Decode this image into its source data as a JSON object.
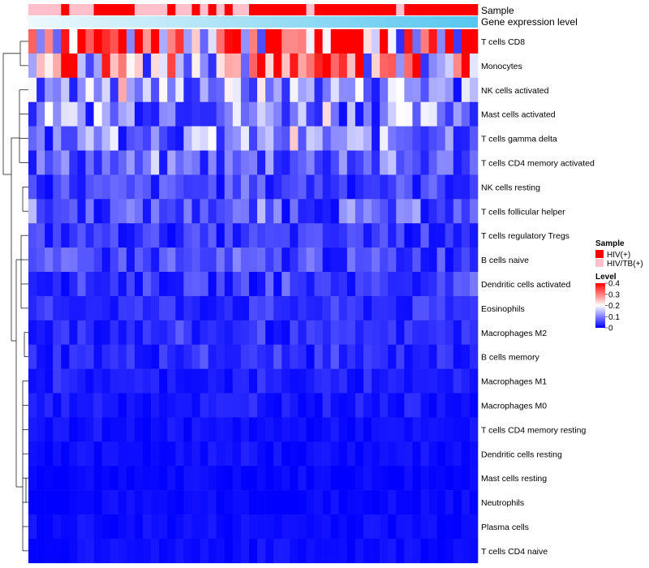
{
  "chart_data": {
    "type": "heatmap",
    "title": "",
    "annotations": {
      "sample_label": "Sample",
      "expression_label": "Gene expression level",
      "sample_groups": [
        "HIV/TB(+)",
        "HIV/TB(+)",
        "HIV/TB(+)",
        "HIV/TB(+)",
        "HIV(+)",
        "HIV/TB(+)",
        "HIV/TB(+)",
        "HIV/TB(+)",
        "HIV(+)",
        "HIV(+)",
        "HIV(+)",
        "HIV(+)",
        "HIV(+)",
        "HIV/TB(+)",
        "HIV/TB(+)",
        "HIV/TB(+)",
        "HIV/TB(+)",
        "HIV(+)",
        "HIV/TB(+)",
        "HIV/TB(+)",
        "HIV(+)",
        "HIV/TB(+)",
        "HIV(+)",
        "HIV/TB(+)",
        "HIV(+)",
        "HIV/TB(+)",
        "HIV/TB(+)",
        "HIV(+)",
        "HIV(+)",
        "HIV(+)",
        "HIV(+)",
        "HIV(+)",
        "HIV(+)",
        "HIV(+)",
        "HIV/TB(+)",
        "HIV(+)",
        "HIV(+)",
        "HIV(+)",
        "HIV(+)",
        "HIV(+)",
        "HIV(+)",
        "HIV(+)",
        "HIV(+)",
        "HIV(+)",
        "HIV(+)",
        "HIV/TB(+)",
        "HIV(+)",
        "HIV(+)",
        "HIV(+)",
        "HIV(+)",
        "HIV(+)",
        "HIV(+)",
        "HIV(+)",
        "HIV(+)",
        "HIV(+)"
      ]
    },
    "rows": [
      "T cells CD8",
      "Monocytes",
      "NK cells activated",
      "Mast cells activated",
      "T cells gamma delta",
      "T cells CD4 memory activated",
      "NK cells resting",
      "T cells follicular helper",
      "T cells regulatory  Tregs",
      "B cells naive",
      "Dendritic cells activated",
      "Eosinophils",
      "Macrophages M2",
      "B cells memory",
      "Macrophages M1",
      "Macrophages M0",
      "T cells CD4 memory resting",
      "Dendritic cells resting",
      "Mast cells resting",
      "Neutrophils",
      "Plasma cells",
      "T cells CD4 naive"
    ],
    "row_base": [
      0.33,
      0.25,
      0.12,
      0.11,
      0.1,
      0.07,
      0.05,
      0.06,
      0.04,
      0.05,
      0.04,
      0.035,
      0.03,
      0.03,
      0.02,
      0.02,
      0.01,
      0.01,
      0.005,
      0.005,
      0.01,
      0.01
    ],
    "num_columns": 55,
    "legend": {
      "sample_title": "Sample",
      "sample_entries": [
        {
          "label": "HIV(+)",
          "color": "#ff0000"
        },
        {
          "label": "HIV/TB(+)",
          "color": "#ffc0cb"
        }
      ],
      "level_title": "Level",
      "level_ticks": [
        "0.4",
        "0.3",
        "0.2",
        "0.1",
        "0"
      ],
      "range": [
        0,
        0.4
      ],
      "colors": {
        "low": "#0000ff",
        "mid": "#ffffff",
        "high": "#ff0000"
      }
    }
  }
}
